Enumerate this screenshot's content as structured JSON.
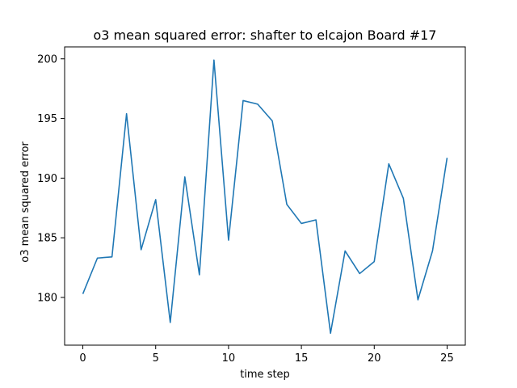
{
  "chart_data": {
    "type": "line",
    "title": "o3 mean squared error: shafter to elcajon Board #17",
    "xlabel": "time step",
    "ylabel": "o3 mean squared error",
    "x": [
      0,
      1,
      2,
      3,
      4,
      5,
      6,
      7,
      8,
      9,
      10,
      11,
      12,
      13,
      14,
      15,
      16,
      17,
      18,
      19,
      20,
      21,
      22,
      23,
      24,
      25
    ],
    "series": [
      {
        "color": "#1f77b4",
        "values": [
          180.3,
          183.3,
          183.4,
          195.4,
          184.0,
          188.2,
          177.9,
          190.1,
          181.9,
          199.9,
          184.8,
          196.5,
          196.2,
          194.8,
          187.8,
          186.2,
          186.5,
          177.0,
          183.9,
          182.0,
          183.0,
          191.2,
          188.3,
          179.8,
          183.9,
          191.7
        ]
      }
    ],
    "xlim": [
      -1.25,
      26.25
    ],
    "ylim": [
      176.0,
      201.0
    ],
    "xticks": [
      0,
      5,
      10,
      15,
      20,
      25
    ],
    "yticks": [
      180,
      185,
      190,
      195,
      200
    ],
    "xtick_labels": [
      "0",
      "5",
      "10",
      "15",
      "20",
      "25"
    ],
    "ytick_labels": [
      "180",
      "185",
      "190",
      "195",
      "200"
    ],
    "grid": false,
    "legend": "none"
  }
}
